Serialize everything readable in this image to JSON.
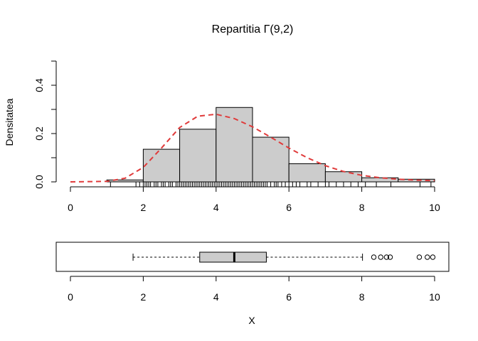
{
  "chart_data": [
    {
      "type": "histogram",
      "title": "Repartitia Γ(9,2)",
      "ylabel": "Densitatea",
      "xlabel": "",
      "xlim": [
        0,
        10
      ],
      "ylim": [
        0,
        0.5
      ],
      "x_ticks": [
        0,
        2,
        4,
        6,
        8,
        10
      ],
      "y_ticks": [
        0.0,
        0.2,
        0.4
      ],
      "y_tick_labels": [
        "0.0",
        "0.2",
        "0.4"
      ],
      "minor_y_ticks": [
        0.1,
        0.3,
        0.5
      ],
      "bar_color": "#cccccc",
      "bins": [
        {
          "start": 1,
          "end": 2,
          "density": 0.008
        },
        {
          "start": 2,
          "end": 3,
          "density": 0.135
        },
        {
          "start": 3,
          "end": 4,
          "density": 0.218
        },
        {
          "start": 4,
          "end": 5,
          "density": 0.308
        },
        {
          "start": 5,
          "end": 6,
          "density": 0.185
        },
        {
          "start": 6,
          "end": 7,
          "density": 0.075
        },
        {
          "start": 7,
          "end": 8,
          "density": 0.042
        },
        {
          "start": 8,
          "end": 9,
          "density": 0.017
        },
        {
          "start": 9,
          "end": 10,
          "density": 0.011
        }
      ],
      "density_curve": {
        "color": "#e03a3a",
        "style": "dashed",
        "x": [
          0,
          1,
          1.5,
          2,
          2.5,
          3,
          3.5,
          4,
          4.5,
          5,
          5.5,
          6,
          6.5,
          7,
          7.5,
          8,
          8.5,
          9,
          9.5,
          10
        ],
        "y": [
          0.0,
          0.002,
          0.015,
          0.06,
          0.14,
          0.225,
          0.272,
          0.28,
          0.262,
          0.228,
          0.185,
          0.14,
          0.1,
          0.067,
          0.043,
          0.027,
          0.017,
          0.011,
          0.007,
          0.005
        ]
      },
      "rug": [
        1.1,
        1.8,
        1.9,
        2.0,
        2.05,
        2.1,
        2.15,
        2.2,
        2.3,
        2.35,
        2.4,
        2.5,
        2.55,
        2.6,
        2.7,
        2.75,
        2.8,
        2.9,
        2.95,
        3.0,
        3.05,
        3.1,
        3.15,
        3.2,
        3.25,
        3.3,
        3.35,
        3.4,
        3.45,
        3.5,
        3.55,
        3.6,
        3.65,
        3.7,
        3.75,
        3.8,
        3.85,
        3.9,
        3.95,
        4.0,
        4.05,
        4.1,
        4.15,
        4.2,
        4.25,
        4.3,
        4.35,
        4.4,
        4.45,
        4.5,
        4.55,
        4.6,
        4.65,
        4.7,
        4.75,
        4.8,
        4.85,
        4.9,
        4.95,
        5.0,
        5.05,
        5.1,
        5.15,
        5.2,
        5.25,
        5.3,
        5.35,
        5.4,
        5.5,
        5.6,
        5.65,
        5.7,
        5.8,
        5.9,
        6.0,
        6.1,
        6.2,
        6.3,
        6.5,
        6.6,
        6.8,
        7.0,
        7.1,
        7.3,
        7.5,
        7.7,
        7.9,
        8.1,
        8.4,
        8.8,
        9.6,
        9.9
      ]
    },
    {
      "type": "boxplot",
      "xlabel": "X",
      "xlim": [
        0,
        10
      ],
      "x_ticks": [
        0,
        2,
        4,
        6,
        8,
        10
      ],
      "box_color": "#cccccc",
      "whisker_low": 1.72,
      "q1": 3.55,
      "median": 4.5,
      "q3": 5.38,
      "whisker_high": 8.02,
      "outliers": [
        8.33,
        8.52,
        8.68,
        8.78,
        9.58,
        9.8,
        9.95
      ]
    }
  ]
}
